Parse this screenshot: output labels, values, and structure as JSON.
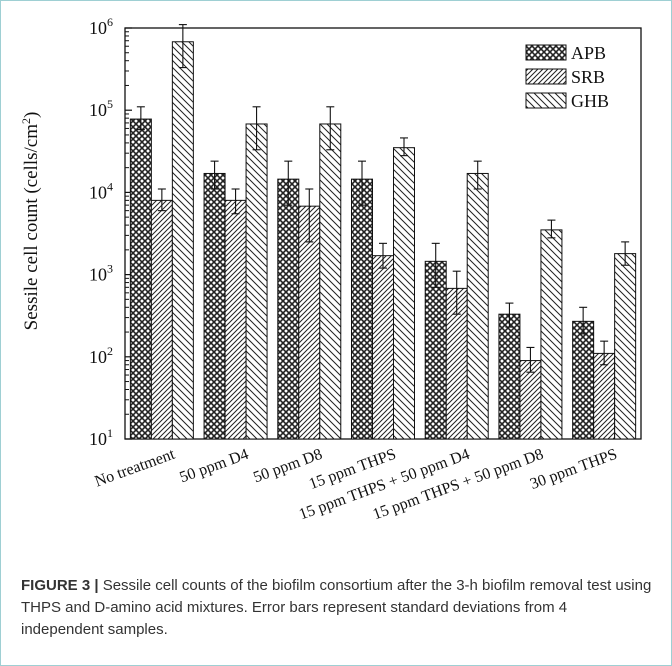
{
  "chart_data": {
    "type": "bar",
    "ylabel_main": "Sessile cell count (cells/cm",
    "ylabel_sup": "2",
    "ylabel_close": ")",
    "yscale": "log",
    "ylim": [
      10,
      1000000
    ],
    "yticks": [
      {
        "value": 10,
        "base": "10",
        "exp": "1"
      },
      {
        "value": 100,
        "base": "10",
        "exp": "2"
      },
      {
        "value": 1000,
        "base": "10",
        "exp": "3"
      },
      {
        "value": 10000,
        "base": "10",
        "exp": "4"
      },
      {
        "value": 100000,
        "base": "10",
        "exp": "5"
      },
      {
        "value": 1000000,
        "base": "10",
        "exp": "6"
      }
    ],
    "categories": [
      "No treatment",
      "50 ppm D4",
      "50 ppm D8",
      "15 ppm THPS",
      "15 ppm THPS + 50 ppm D4",
      "15 ppm THPS + 50 ppm D8",
      "30 ppm THPS"
    ],
    "series": [
      {
        "name": "APB",
        "pattern": "crosshatch",
        "values": [
          78000,
          17000,
          14500,
          14500,
          1450,
          330,
          270
        ],
        "err_high": [
          110000,
          24000,
          24000,
          24000,
          2400,
          450,
          400
        ],
        "err_low": [
          58000,
          11000,
          7000,
          7000,
          700,
          230,
          190
        ]
      },
      {
        "name": "SRB",
        "pattern": "forward-diagonal",
        "values": [
          8000,
          8000,
          6800,
          1700,
          680,
          90,
          110
        ],
        "err_high": [
          11000,
          11000,
          11000,
          2400,
          1100,
          130,
          155
        ],
        "err_low": [
          6000,
          5500,
          2500,
          1200,
          330,
          65,
          80
        ]
      },
      {
        "name": "GHB",
        "pattern": "back-diagonal",
        "values": [
          680000,
          68000,
          68000,
          35000,
          17000,
          3500,
          1800
        ],
        "err_high": [
          1100000,
          110000,
          110000,
          46000,
          24000,
          4600,
          2500
        ],
        "err_low": [
          330000,
          33000,
          33000,
          28000,
          11000,
          2800,
          1300
        ]
      }
    ],
    "legend_position": "top-right",
    "grid": false
  },
  "caption": {
    "label": "FIGURE 3 |",
    "text_1": " Sessile cell counts of the biofilm consortium after the 3-h biofilm removal test using THPS and ",
    "d_letter": "D",
    "text_2": "-amino acid mixtures. Error bars represent standard deviations from 4 independent samples."
  }
}
